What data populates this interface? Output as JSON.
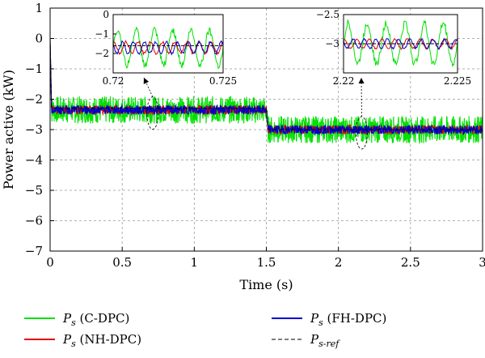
{
  "chart_data": {
    "type": "line",
    "title": "",
    "xlabel": "Time (s)",
    "ylabel": "Power active (kW)",
    "xlim": [
      0,
      3
    ],
    "ylim": [
      -7,
      1
    ],
    "xticks": [
      0,
      0.5,
      1,
      1.5,
      2,
      2.5,
      3
    ],
    "yticks": [
      1,
      0,
      -1,
      -2,
      -3,
      -4,
      -5,
      -6,
      -7
    ],
    "xtick_labels": [
      "0",
      "0.5",
      "1",
      "1.5",
      "2",
      "2.5",
      "3"
    ],
    "ytick_labels": [
      "1",
      "0",
      "−1",
      "−2",
      "−3",
      "−4",
      "−5",
      "−6",
      "−7"
    ],
    "grid": true,
    "legend_position": "bottom",
    "series": [
      {
        "key": "c",
        "name": "P",
        "name_sub": "s",
        "name_suffix": " (C-DPC)",
        "color": "#00e000",
        "dash": "solid",
        "x": [
          0,
          0.01,
          1.5,
          1.51,
          3
        ],
        "y": [
          0,
          -2.35,
          -2.35,
          -3.0,
          -3.0
        ],
        "ripple_kW": 0.45
      },
      {
        "key": "nh",
        "name": "P",
        "name_sub": "s",
        "name_suffix": " (NH-DPC)",
        "color": "#e00000",
        "dash": "solid",
        "x": [
          0,
          0.01,
          1.5,
          1.51,
          3
        ],
        "y": [
          0,
          -2.35,
          -2.35,
          -3.0,
          -3.0
        ],
        "ripple_kW": 0.15
      },
      {
        "key": "fh",
        "name": "P",
        "name_sub": "s",
        "name_suffix": " (FH-DPC)",
        "color": "#0000d0",
        "dash": "solid",
        "x": [
          0,
          0.01,
          1.5,
          1.51,
          3
        ],
        "y": [
          0,
          -2.35,
          -2.35,
          -3.0,
          -3.0
        ],
        "ripple_kW": 0.15
      },
      {
        "key": "ref",
        "name": "P",
        "name_sub": "s-ref",
        "name_suffix": "",
        "color": "#000000",
        "dash": "dashed",
        "x": [
          0,
          0.01,
          1.5,
          1.51,
          3
        ],
        "y": [
          0,
          -2.3,
          -2.3,
          -3.0,
          -3.0
        ],
        "ripple_kW": 0
      }
    ],
    "insets": [
      {
        "xlim": [
          0.72,
          0.725
        ],
        "ylim": [
          -3,
          0
        ],
        "yticks": [
          0,
          -1,
          -2
        ],
        "ytick_labels": [
          "0",
          "−1",
          "−2"
        ],
        "xtick_labels": [
          "0.72",
          "0.725"
        ],
        "center_kW": -1.7,
        "zoom_target_x": 0.7,
        "zoom_target_y": -2.35
      },
      {
        "xlim": [
          2.22,
          2.225
        ],
        "ylim": [
          -3.5,
          -2.5
        ],
        "yticks": [
          -2.5,
          -3
        ],
        "ytick_labels": [
          "−2.5",
          "−3"
        ],
        "xtick_labels": [
          "2.22",
          "2.225"
        ],
        "center_kW": -3.0,
        "zoom_target_x": 2.15,
        "zoom_target_y": -3.0
      }
    ]
  }
}
